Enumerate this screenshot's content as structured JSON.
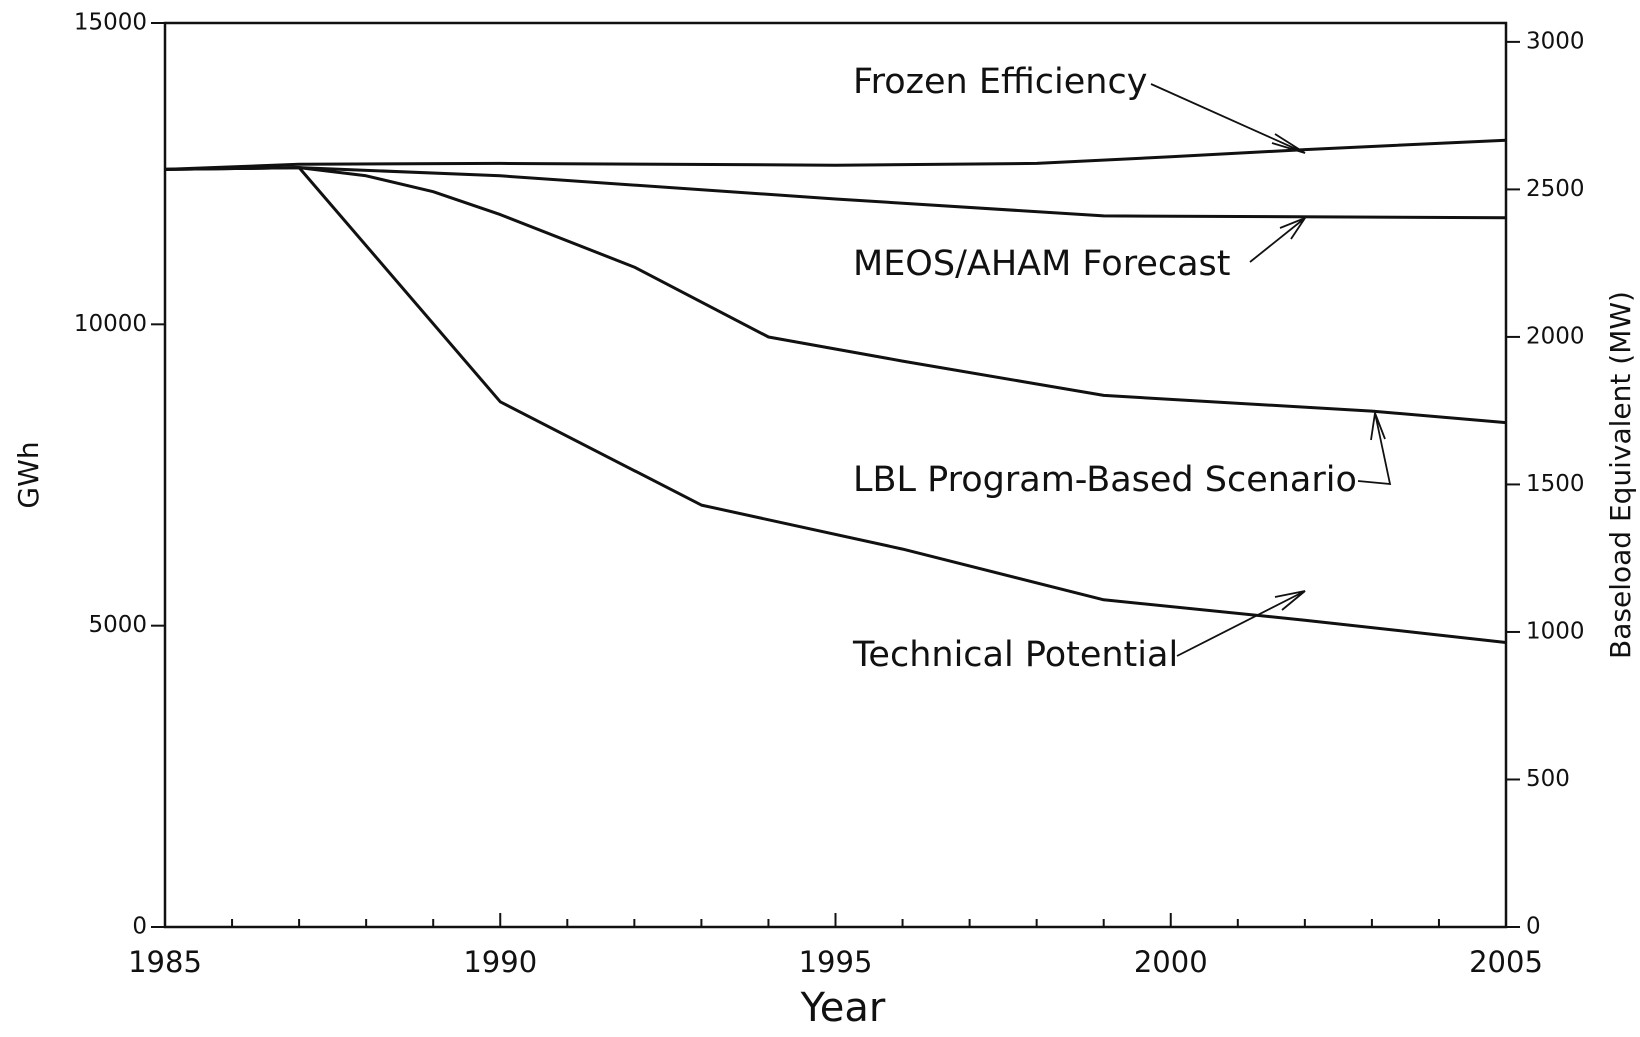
{
  "chart_data": {
    "type": "line",
    "x_label": "Year",
    "y_label": "GWh",
    "y2_label": "Baseload Equivalent (MW)",
    "xlim": [
      1985,
      2005
    ],
    "xticks": [
      1985,
      1990,
      1995,
      2000,
      2005
    ],
    "xminorticks": [
      1986,
      1987,
      1988,
      1989,
      1991,
      1992,
      1993,
      1994,
      1996,
      1997,
      1998,
      1999,
      2001,
      2002,
      2003,
      2004
    ],
    "ylim": [
      0,
      15000
    ],
    "yticks": [
      0,
      5000,
      10000,
      15000
    ],
    "y2lim": [
      0,
      3064
    ],
    "y2ticks": [
      0,
      500,
      1000,
      1500,
      2000,
      2500,
      3000
    ],
    "grid": false,
    "series": [
      {
        "name": "Frozen Efficiency",
        "color": "#111111",
        "x": [
          1985,
          1987,
          1990,
          1995,
          1998,
          2000,
          2002,
          2005
        ],
        "values": [
          12570,
          12656,
          12670,
          12640,
          12670,
          12780,
          12900,
          13055
        ]
      },
      {
        "name": "MEOS/AHAM Forecast",
        "color": "#111111",
        "x": [
          1985,
          1987,
          1990,
          1995,
          1999,
          2005
        ],
        "values": [
          12570,
          12600,
          12465,
          12080,
          11800,
          11770
        ]
      },
      {
        "name": "LBL Program-Based Scenario",
        "color": "#111111",
        "x": [
          1985,
          1987,
          1988,
          1989,
          1990,
          1992,
          1994,
          1996,
          1999,
          2003,
          2005
        ],
        "values": [
          12570,
          12600,
          12465,
          12200,
          11820,
          10950,
          9790,
          9390,
          8820,
          8560,
          8370
        ]
      },
      {
        "name": "Technical Potential",
        "color": "#111111",
        "x": [
          1985,
          1987,
          1990,
          1993,
          1996,
          1999,
          2002,
          2005
        ],
        "values": [
          12570,
          12600,
          8715,
          7000,
          6270,
          5430,
          5090,
          4720
        ]
      }
    ]
  }
}
